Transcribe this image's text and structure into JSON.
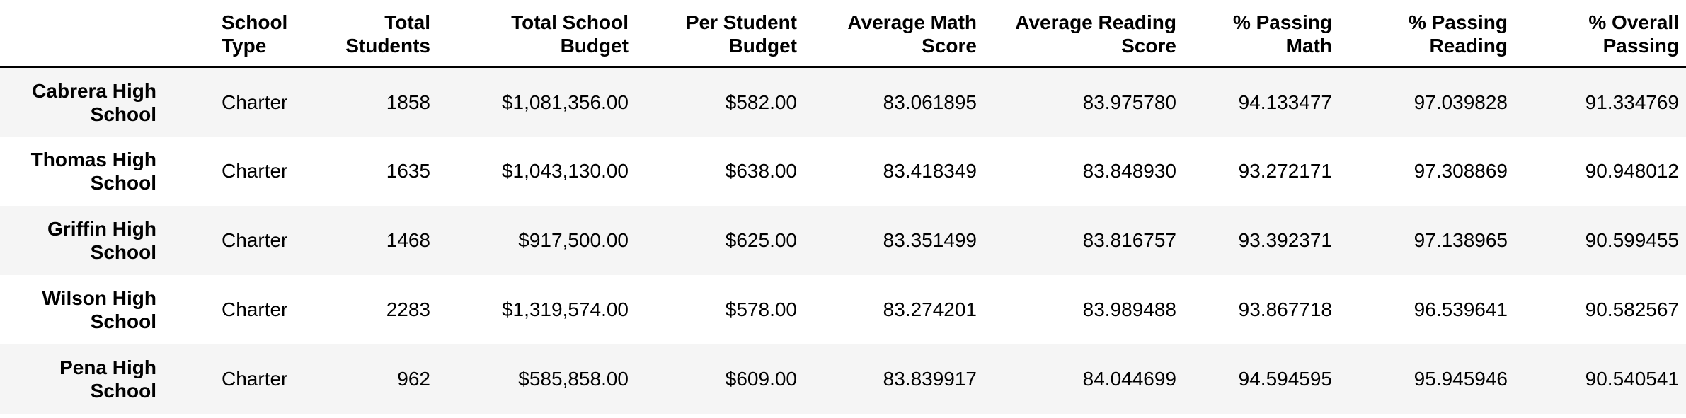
{
  "table": {
    "index_header": "",
    "columns": [
      {
        "line1": "School",
        "line2": "Type"
      },
      {
        "line1": "Total",
        "line2": "Students"
      },
      {
        "line1": "Total School",
        "line2": "Budget"
      },
      {
        "line1": "Per Student",
        "line2": "Budget"
      },
      {
        "line1": "Average Math",
        "line2": "Score"
      },
      {
        "line1": "Average Reading",
        "line2": "Score"
      },
      {
        "line1": "% Passing",
        "line2": "Math"
      },
      {
        "line1": "% Passing",
        "line2": "Reading"
      },
      {
        "line1": "% Overall",
        "line2": "Passing"
      }
    ],
    "rows": [
      {
        "name_line1": "Cabrera High",
        "name_line2": "School",
        "cells": [
          "Charter",
          "1858",
          "$1,081,356.00",
          "$582.00",
          "83.061895",
          "83.975780",
          "94.133477",
          "97.039828",
          "91.334769"
        ]
      },
      {
        "name_line1": "Thomas High",
        "name_line2": "School",
        "cells": [
          "Charter",
          "1635",
          "$1,043,130.00",
          "$638.00",
          "83.418349",
          "83.848930",
          "93.272171",
          "97.308869",
          "90.948012"
        ]
      },
      {
        "name_line1": "Griffin High",
        "name_line2": "School",
        "cells": [
          "Charter",
          "1468",
          "$917,500.00",
          "$625.00",
          "83.351499",
          "83.816757",
          "93.392371",
          "97.138965",
          "90.599455"
        ]
      },
      {
        "name_line1": "Wilson High",
        "name_line2": "School",
        "cells": [
          "Charter",
          "2283",
          "$1,319,574.00",
          "$578.00",
          "83.274201",
          "83.989488",
          "93.867718",
          "96.539641",
          "90.582567"
        ]
      },
      {
        "name_line1": "Pena High",
        "name_line2": "School",
        "cells": [
          "Charter",
          "962",
          "$585,858.00",
          "$609.00",
          "83.839917",
          "84.044699",
          "94.594595",
          "95.945946",
          "90.540541"
        ]
      }
    ]
  }
}
